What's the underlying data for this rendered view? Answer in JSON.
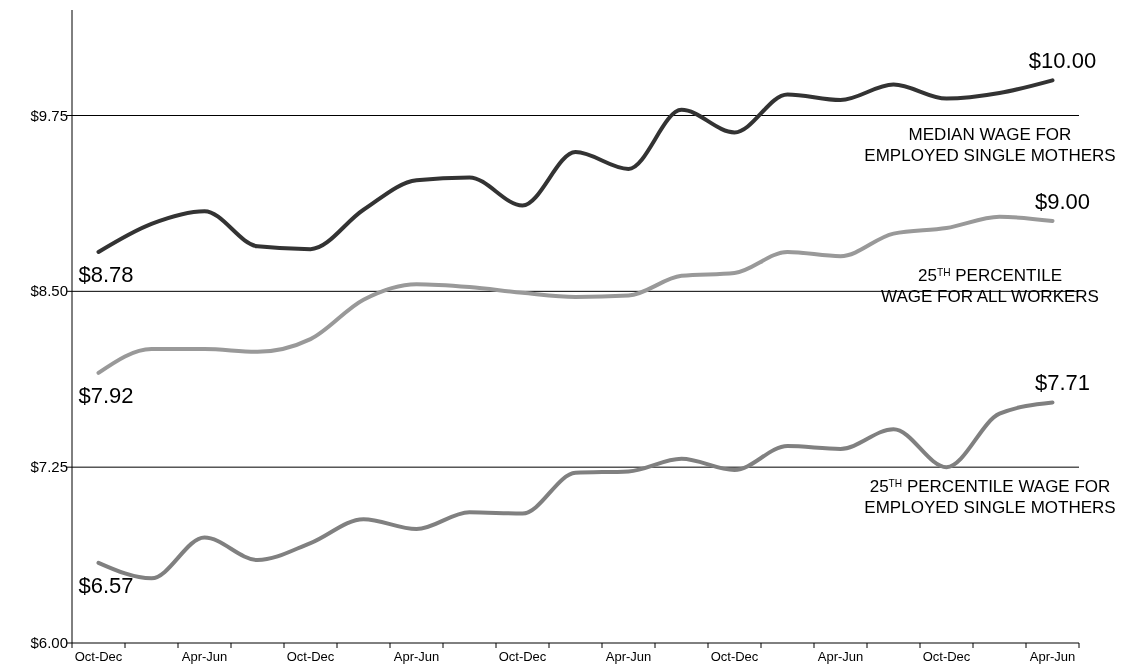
{
  "chart_data": {
    "type": "line",
    "categories": [
      "Oct-Dec",
      null,
      "Apr-Jun",
      null,
      "Oct-Dec",
      null,
      "Apr-Jun",
      null,
      "Oct-Dec",
      null,
      "Apr-Jun",
      null,
      "Oct-Dec",
      null,
      "Apr-Jun",
      null,
      "Oct-Dec",
      null,
      "Apr-Jun"
    ],
    "ylim": [
      6,
      10.5
    ],
    "yticks": [
      {
        "value": 6,
        "label": "$6.00"
      },
      {
        "value": 7.25,
        "label": "$7.25"
      },
      {
        "value": 8.5,
        "label": "$8.50"
      },
      {
        "value": 9.75,
        "label": "$9.75"
      }
    ],
    "grid": "y",
    "legend": false,
    "marker": "none",
    "line_style": "solid",
    "series": [
      {
        "name": "MEDIAN WAGE FOR EMPLOYED SINGLE MOTHERS",
        "color": "#333333",
        "values": [
          8.78,
          8.98,
          9.07,
          8.82,
          8.8,
          9.08,
          9.29,
          9.31,
          9.11,
          9.49,
          9.37,
          9.79,
          9.63,
          9.9,
          9.86,
          9.97,
          9.87,
          9.91,
          10.0
        ],
        "value_labels": [
          "$8.78",
          null,
          null,
          null,
          null,
          null,
          null,
          null,
          null,
          null,
          null,
          null,
          null,
          null,
          null,
          null,
          null,
          null,
          "$10.00"
        ]
      },
      {
        "name": "25$^{TH}$ PERCENTILE WAGE FOR ALL WORKERS",
        "color": "#999999",
        "values": [
          7.92,
          8.09,
          8.09,
          8.07,
          8.16,
          8.44,
          8.55,
          8.53,
          8.49,
          8.46,
          8.47,
          8.61,
          8.63,
          8.78,
          8.75,
          8.91,
          8.95,
          9.03,
          9.0
        ],
        "value_labels": [
          "$7.92",
          null,
          null,
          null,
          null,
          null,
          null,
          null,
          null,
          null,
          null,
          null,
          null,
          null,
          null,
          null,
          null,
          null,
          "$9.00"
        ]
      },
      {
        "name": "25$^{TH}$ PERCENTILE WAGE FOR EMPLOYED SINGLE MOTHERS",
        "color": "#808080",
        "values": [
          6.57,
          6.46,
          6.75,
          6.59,
          6.71,
          6.88,
          6.81,
          6.93,
          6.92,
          7.21,
          7.22,
          7.31,
          7.23,
          7.4,
          7.38,
          7.52,
          7.25,
          7.63,
          7.71
        ],
        "value_labels": [
          "$6.57",
          null,
          null,
          null,
          null,
          null,
          null,
          null,
          null,
          null,
          null,
          null,
          null,
          null,
          null,
          null,
          null,
          null,
          "$7.71"
        ]
      }
    ]
  }
}
